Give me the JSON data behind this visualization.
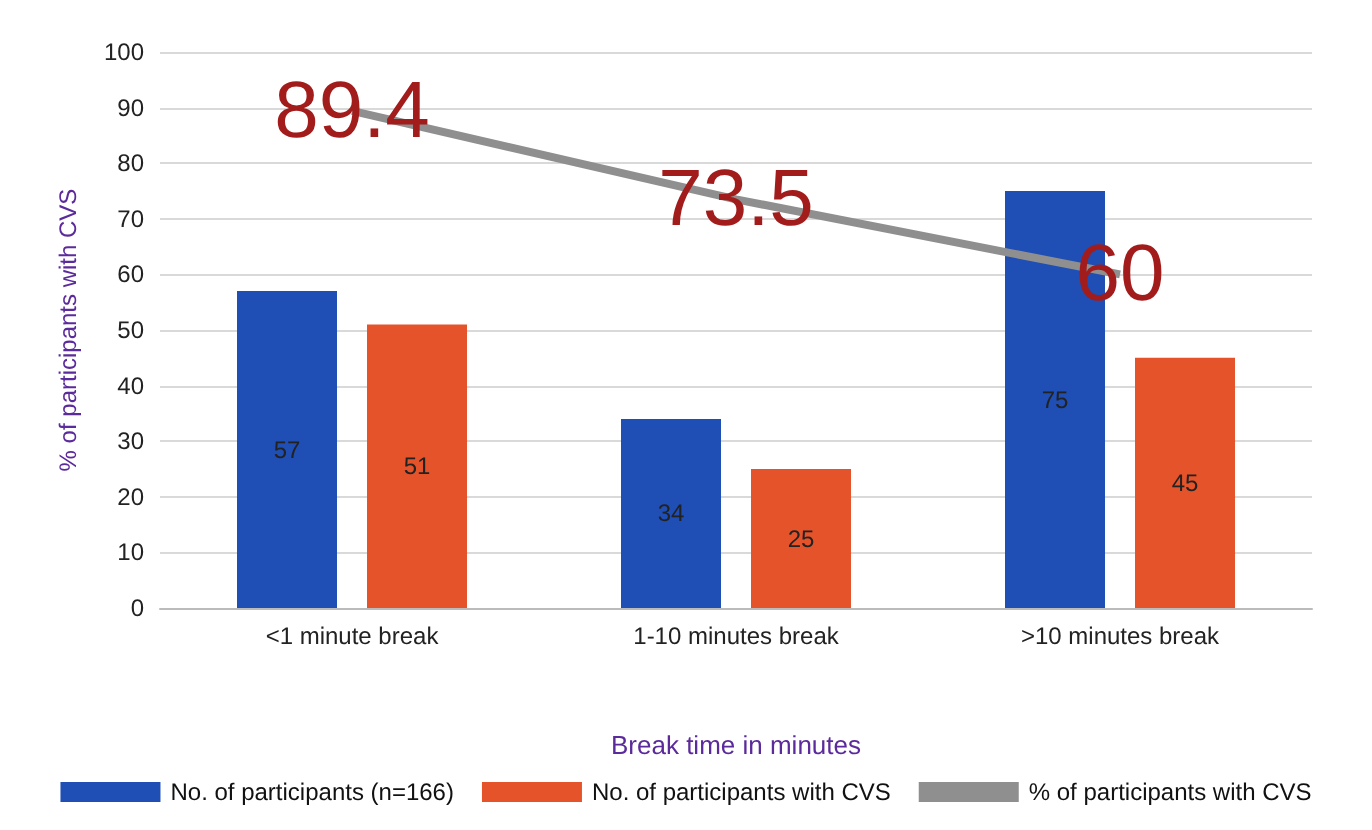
{
  "chart_data": {
    "type": "bar",
    "xlabel": "Break time in minutes",
    "ylabel": "% of participants with CVS",
    "categories": [
      "<1 minute break",
      "1-10 minutes break",
      ">10 minutes break"
    ],
    "series": [
      {
        "name": "No. of participants (n=166)",
        "color": "#1f4eb4",
        "values": [
          57,
          34,
          75
        ]
      },
      {
        "name": "No. of participants with CVS",
        "color": "#e5532a",
        "values": [
          51,
          25,
          45
        ]
      },
      {
        "name": "% of participants with CVS",
        "type": "line",
        "color": "#8f8f8f",
        "values": [
          89.4,
          73.5,
          60
        ]
      }
    ],
    "ylim": [
      0,
      100
    ],
    "yticks": [
      0,
      10,
      20,
      30,
      40,
      50,
      60,
      70,
      80,
      90,
      100
    ],
    "grid": "y",
    "legend": "bottom",
    "data_labels": true,
    "marker": "none"
  }
}
